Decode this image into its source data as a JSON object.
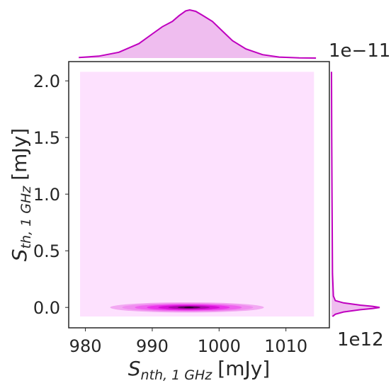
{
  "chart_data": {
    "type": "kde_jointplot",
    "title": "",
    "xlabel": {
      "symbol": "S",
      "sub": "nth, 1 GHz",
      "unit": "[mJy]"
    },
    "ylabel": {
      "symbol": "S",
      "sub": "th, 1 GHz",
      "unit": "[mJy]"
    },
    "x_offset_text": "1e12",
    "y_offset_text": "1e−11",
    "xlim": [
      977.5,
      1016.5
    ],
    "ylim": [
      -0.18,
      2.17
    ],
    "xticks": [
      {
        "value": 980,
        "label": "980"
      },
      {
        "value": 990,
        "label": "990"
      },
      {
        "value": 1000,
        "label": "1000"
      },
      {
        "value": 1010,
        "label": "1010"
      }
    ],
    "yticks": [
      {
        "value": 0.0,
        "label": "0.0"
      },
      {
        "value": 0.5,
        "label": "0.5"
      },
      {
        "value": 1.0,
        "label": "1.0"
      },
      {
        "value": 1.5,
        "label": "1.5"
      },
      {
        "value": 2.0,
        "label": "2.0"
      }
    ],
    "joint_fill_extent": {
      "x": [
        979.2,
        1014.2
      ],
      "y": [
        -0.08,
        2.08
      ]
    },
    "density_peak": {
      "x": 995.5,
      "y": 0.0
    },
    "joint_contours": [
      {
        "level": 1,
        "cx": 995.2,
        "cy": 0.0,
        "rx": 11.5,
        "ry": 0.045,
        "color": "#f2a8f2"
      },
      {
        "level": 2,
        "cx": 995.3,
        "cy": 0.0,
        "rx": 9.8,
        "ry": 0.038,
        "color": "#f08cf0"
      },
      {
        "level": 3,
        "cx": 995.4,
        "cy": 0.0,
        "rx": 8.0,
        "ry": 0.032,
        "color": "#ee62ee"
      },
      {
        "level": 4,
        "cx": 995.4,
        "cy": 0.0,
        "rx": 6.2,
        "ry": 0.026,
        "color": "#ea33ea"
      },
      {
        "level": 5,
        "cx": 995.5,
        "cy": 0.0,
        "rx": 4.6,
        "ry": 0.02,
        "color": "#d60fd6"
      },
      {
        "level": 6,
        "cx": 995.5,
        "cy": 0.0,
        "rx": 3.1,
        "ry": 0.014,
        "color": "#a908a9"
      },
      {
        "level": 7,
        "cx": 995.5,
        "cy": 0.0,
        "rx": 1.7,
        "ry": 0.009,
        "color": "#5c045c"
      },
      {
        "level": 8,
        "cx": 995.5,
        "cy": 0.0,
        "rx": 0.7,
        "ry": 0.004,
        "color": "#1f001f"
      }
    ],
    "marginal_x": {
      "x": [
        979.0,
        982.0,
        985.0,
        988.0,
        990.0,
        991.5,
        993.0,
        994.0,
        995.0,
        995.6,
        996.5,
        997.5,
        999.0,
        1000.5,
        1002.0,
        1004.0,
        1006.5,
        1009.0,
        1012.0,
        1014.5
      ],
      "density": [
        0.01,
        0.04,
        0.12,
        0.3,
        0.5,
        0.65,
        0.76,
        0.88,
        0.98,
        1.0,
        0.97,
        0.89,
        0.76,
        0.56,
        0.36,
        0.19,
        0.07,
        0.02,
        0.005,
        0.0
      ]
    },
    "marginal_y": {
      "y": [
        -0.08,
        -0.06,
        -0.04,
        -0.02,
        -0.01,
        0.0,
        0.01,
        0.02,
        0.04,
        0.06,
        0.1,
        0.3,
        1.0,
        1.5,
        2.08
      ],
      "density": [
        0.02,
        0.08,
        0.25,
        0.6,
        0.85,
        1.0,
        0.85,
        0.6,
        0.25,
        0.08,
        0.04,
        0.02,
        0.01,
        0.005,
        0.0
      ]
    },
    "colors": {
      "line": "#bf00bf",
      "marginal_fill": "#efbdef",
      "joint_background": "#fde1fe",
      "axis": "#262626"
    },
    "grid": false,
    "legend": "none"
  }
}
